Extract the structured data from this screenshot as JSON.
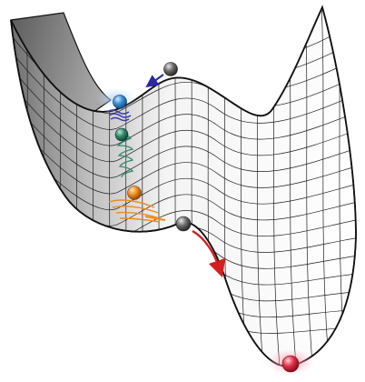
{
  "diagram": {
    "kind": "potential-energy-landscape",
    "colors": {
      "background": "#ffffff",
      "surface_light": "#ffffff",
      "surface_dark": "#7a7a7a",
      "mesh": "#1e1e1e",
      "outline": "#111111",
      "ball_gray": "#6b6b6b",
      "ball_blue": "#3a8fd6",
      "ball_green": "#2f8a68",
      "ball_orange": "#f08a1c",
      "ball_red": "#e0304a",
      "arrow_blue": "#2a2aa0",
      "arrow_red": "#d21f1f",
      "trail_blue": "#3d3db0",
      "trail_green": "#2f8a68",
      "trail_orange": "#f08a1c"
    },
    "balls": [
      {
        "name": "gray-ball-top",
        "color_key": "ball_gray"
      },
      {
        "name": "blue-ball",
        "color_key": "ball_blue"
      },
      {
        "name": "green-ball",
        "color_key": "ball_green"
      },
      {
        "name": "orange-ball",
        "color_key": "ball_orange"
      },
      {
        "name": "gray-ball-lower",
        "color_key": "ball_gray"
      },
      {
        "name": "red-ball",
        "color_key": "ball_red"
      }
    ],
    "arrows": [
      {
        "name": "blue-arrow",
        "color_key": "arrow_blue"
      },
      {
        "name": "red-arrow",
        "color_key": "arrow_red"
      }
    ]
  }
}
